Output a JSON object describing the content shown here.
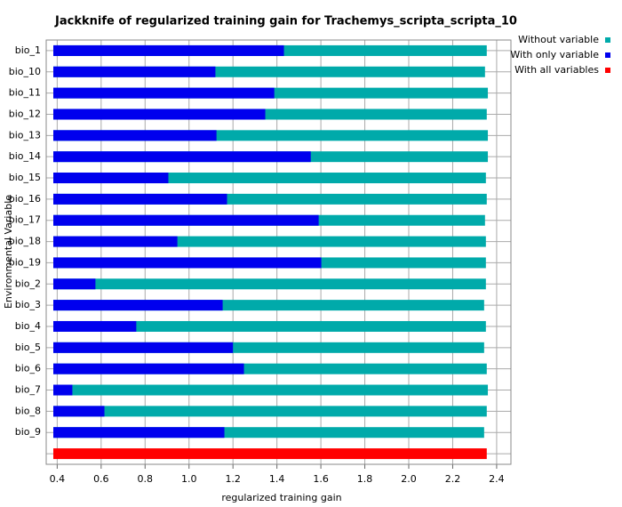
{
  "chart_data": {
    "type": "bar",
    "title": "Jackknife of regularized training gain for Trachemys_scripta_scripta_10",
    "x_label": "regularized training gain",
    "y_label": "Environmental Variable",
    "orientation": "horizontal",
    "grid": true,
    "legend_position": "top-right",
    "categories": [
      "bio_1",
      "bio_10",
      "bio_11",
      "bio_12",
      "bio_13",
      "bio_14",
      "bio_15",
      "bio_16",
      "bio_17",
      "bio_18",
      "bio_19",
      "bio_2",
      "bio_3",
      "bio_4",
      "bio_5",
      "bio_6",
      "bio_7",
      "bio_8",
      "bio_9",
      null
    ],
    "series": [
      {
        "name": "Without variable",
        "color": "#00aaaa",
        "values": [
          2.355,
          2.347,
          2.36,
          2.355,
          2.36,
          2.36,
          2.351,
          2.355,
          2.347,
          2.351,
          2.351,
          2.351,
          2.343,
          2.351,
          2.343,
          2.355,
          2.36,
          2.355,
          2.343,
          null
        ]
      },
      {
        "name": "With only variable",
        "color": "#0000ee",
        "values": [
          1.432,
          1.12,
          1.388,
          1.347,
          1.125,
          1.554,
          0.906,
          1.173,
          1.59,
          0.947,
          1.602,
          0.574,
          1.153,
          0.76,
          1.2,
          1.25,
          0.469,
          0.615,
          1.161,
          null
        ]
      },
      {
        "name": "With all variables",
        "color": "#ff0000",
        "values": [
          null,
          null,
          null,
          null,
          null,
          null,
          null,
          null,
          null,
          null,
          null,
          null,
          null,
          null,
          null,
          null,
          null,
          null,
          null,
          2.355
        ]
      }
    ],
    "xlim": [
      0.35,
      2.465
    ],
    "xticks": [
      0.4,
      0.6,
      0.8,
      {
        "value": 1.0,
        "label": "1.0"
      },
      1.2,
      1.4,
      1.6,
      1.8,
      {
        "value": 2.0,
        "label": "2.0"
      },
      2.2,
      2.4
    ]
  }
}
